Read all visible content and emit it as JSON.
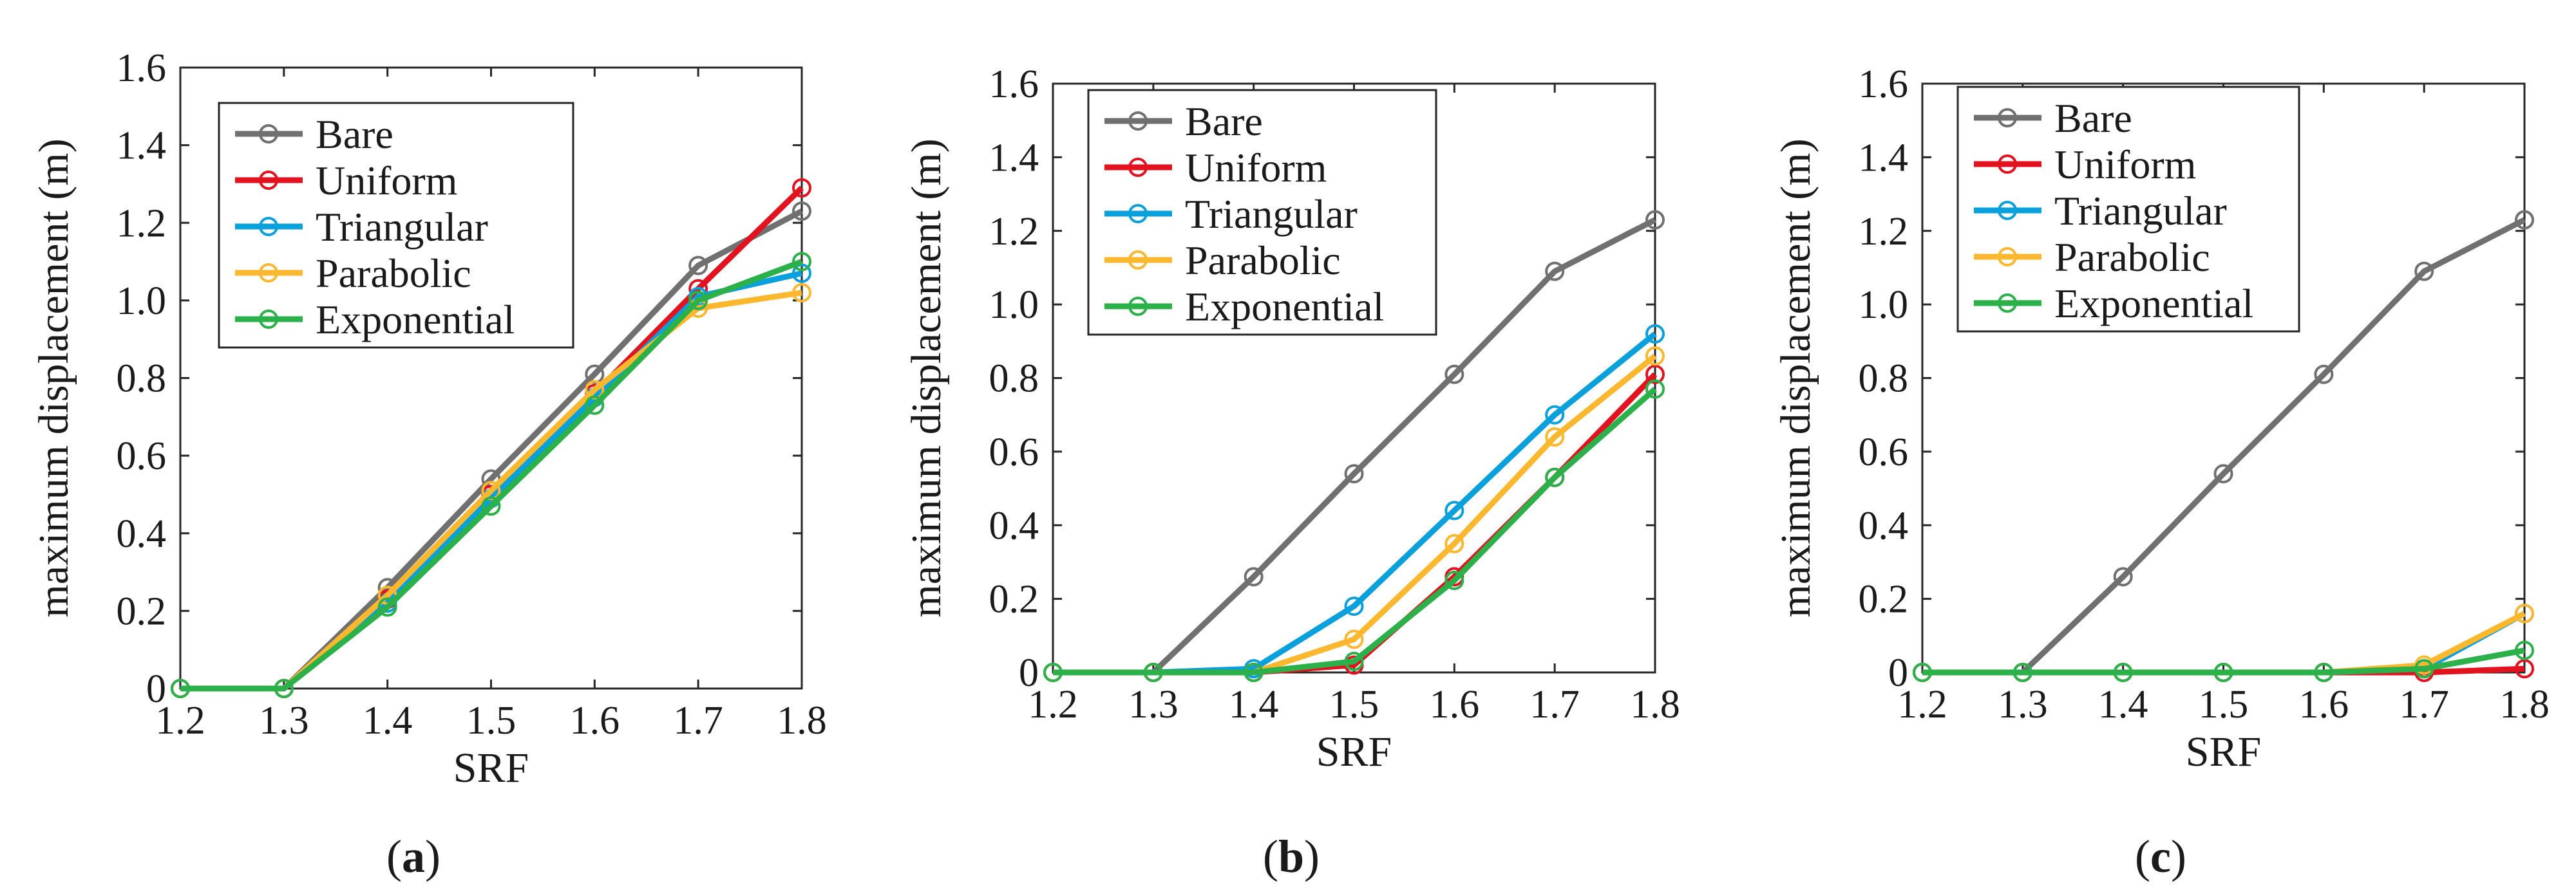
{
  "figure": {
    "panels": [
      {
        "caption_open": "(",
        "caption_letter": "a",
        "caption_close": ")"
      },
      {
        "caption_open": "(",
        "caption_letter": "b",
        "caption_close": ")"
      },
      {
        "caption_open": "(",
        "caption_letter": "c",
        "caption_close": ")"
      }
    ]
  },
  "chart_data": [
    {
      "type": "line",
      "panel": "a",
      "xlabel": "SRF",
      "ylabel": "maximum displacement (m)",
      "xlim": [
        1.2,
        1.8
      ],
      "ylim": [
        0,
        1.6
      ],
      "xticks": [
        "1.2",
        "1.3",
        "1.4",
        "1.5",
        "1.6",
        "1.7",
        "1.8"
      ],
      "yticks": [
        "0",
        "0.2",
        "0.4",
        "0.6",
        "0.8",
        "1.0",
        "1.2",
        "1.4",
        "1.6"
      ],
      "grid": false,
      "legend_position": "top-left",
      "x": [
        1.2,
        1.3,
        1.4,
        1.5,
        1.6,
        1.7,
        1.8
      ],
      "series": [
        {
          "name": "Bare",
          "color": "#707070",
          "values": [
            0,
            0,
            0.26,
            0.54,
            0.81,
            1.09,
            1.23
          ]
        },
        {
          "name": "Uniform",
          "color": "#e3121f",
          "values": [
            0,
            0,
            0.23,
            0.5,
            0.76,
            1.03,
            1.29
          ]
        },
        {
          "name": "Triangular",
          "color": "#0aa0dc",
          "values": [
            0,
            0,
            0.22,
            0.49,
            0.75,
            1.01,
            1.07
          ]
        },
        {
          "name": "Parabolic",
          "color": "#fbb82f",
          "values": [
            0,
            0,
            0.24,
            0.51,
            0.77,
            0.98,
            1.02
          ]
        },
        {
          "name": "Exponential",
          "color": "#2bb04a",
          "values": [
            0,
            0,
            0.21,
            0.47,
            0.73,
            1.0,
            1.1
          ]
        }
      ]
    },
    {
      "type": "line",
      "panel": "b",
      "xlabel": "SRF",
      "ylabel": "maximum displacement (m)",
      "xlim": [
        1.2,
        1.8
      ],
      "ylim": [
        0,
        1.6
      ],
      "xticks": [
        "1.2",
        "1.3",
        "1.4",
        "1.5",
        "1.6",
        "1.7",
        "1.8"
      ],
      "yticks": [
        "0",
        "0.2",
        "0.4",
        "0.6",
        "0.8",
        "1.0",
        "1.2",
        "1.4",
        "1.6"
      ],
      "grid": false,
      "legend_position": "top-left",
      "x": [
        1.2,
        1.3,
        1.4,
        1.5,
        1.6,
        1.7,
        1.8
      ],
      "series": [
        {
          "name": "Bare",
          "color": "#707070",
          "values": [
            0,
            0,
            0.26,
            0.54,
            0.81,
            1.09,
            1.23
          ]
        },
        {
          "name": "Uniform",
          "color": "#e3121f",
          "values": [
            0,
            0,
            0,
            0.02,
            0.26,
            0.53,
            0.81
          ]
        },
        {
          "name": "Triangular",
          "color": "#0aa0dc",
          "values": [
            0,
            0,
            0.01,
            0.18,
            0.44,
            0.7,
            0.92
          ]
        },
        {
          "name": "Parabolic",
          "color": "#fbb82f",
          "values": [
            0,
            0,
            0,
            0.09,
            0.35,
            0.64,
            0.86
          ]
        },
        {
          "name": "Exponential",
          "color": "#2bb04a",
          "values": [
            0,
            0,
            0,
            0.03,
            0.25,
            0.53,
            0.77
          ]
        }
      ]
    },
    {
      "type": "line",
      "panel": "c",
      "xlabel": "SRF",
      "ylabel": "maximum displacement (m)",
      "xlim": [
        1.2,
        1.8
      ],
      "ylim": [
        0,
        1.6
      ],
      "xticks": [
        "1.2",
        "1.3",
        "1.4",
        "1.5",
        "1.6",
        "1.7",
        "1.8"
      ],
      "yticks": [
        "0",
        "0.2",
        "0.4",
        "0.6",
        "0.8",
        "1.0",
        "1.2",
        "1.4",
        "1.6"
      ],
      "grid": false,
      "legend_position": "top-left",
      "x": [
        1.2,
        1.3,
        1.4,
        1.5,
        1.6,
        1.7,
        1.8
      ],
      "series": [
        {
          "name": "Bare",
          "color": "#707070",
          "values": [
            0,
            0,
            0.26,
            0.54,
            0.81,
            1.09,
            1.23
          ]
        },
        {
          "name": "Uniform",
          "color": "#e3121f",
          "values": [
            0,
            0,
            0,
            0,
            0,
            0,
            0.01
          ]
        },
        {
          "name": "Triangular",
          "color": "#0aa0dc",
          "values": [
            0,
            0,
            0,
            0,
            0,
            0.01,
            0.16
          ]
        },
        {
          "name": "Parabolic",
          "color": "#fbb82f",
          "values": [
            0,
            0,
            0,
            0,
            0,
            0.02,
            0.16
          ]
        },
        {
          "name": "Exponential",
          "color": "#2bb04a",
          "values": [
            0,
            0,
            0,
            0,
            0,
            0.01,
            0.06
          ]
        }
      ]
    }
  ]
}
